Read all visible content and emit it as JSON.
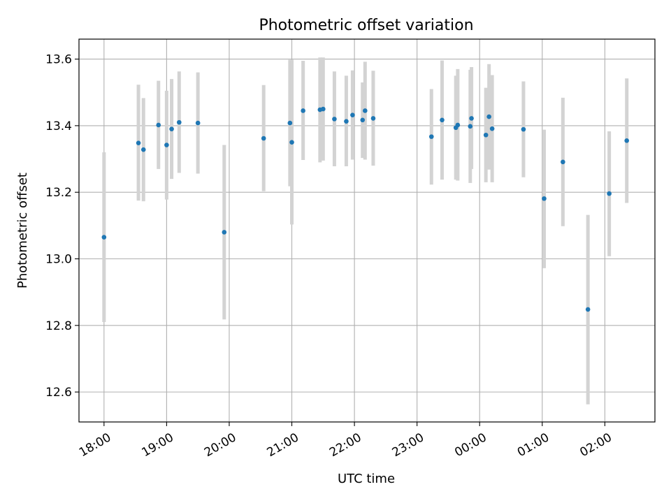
{
  "chart_data": {
    "type": "scatter",
    "title": "Photometric offset variation",
    "xlabel": "UTC time",
    "ylabel": "Photometric offset",
    "x_domain_hours": [
      17.6,
      26.8
    ],
    "ylim": [
      12.51,
      13.66
    ],
    "grid": true,
    "x_ticks": [
      {
        "label": "18:00",
        "hour": 18
      },
      {
        "label": "19:00",
        "hour": 19
      },
      {
        "label": "20:00",
        "hour": 20
      },
      {
        "label": "21:00",
        "hour": 21
      },
      {
        "label": "22:00",
        "hour": 22
      },
      {
        "label": "23:00",
        "hour": 23
      },
      {
        "label": "00:00",
        "hour": 24
      },
      {
        "label": "01:00",
        "hour": 25
      },
      {
        "label": "02:00",
        "hour": 26
      }
    ],
    "y_ticks": [
      "12.6",
      "12.8",
      "13.0",
      "13.2",
      "13.4",
      "13.6"
    ],
    "point_color": "#1f77b4",
    "errorbar_color": "#d3d3d3",
    "points": [
      {
        "x": 18.0,
        "y": 13.065,
        "low": 12.81,
        "high": 13.32
      },
      {
        "x": 18.55,
        "y": 13.348,
        "low": 13.175,
        "high": 13.523
      },
      {
        "x": 18.63,
        "y": 13.328,
        "low": 13.173,
        "high": 13.483
      },
      {
        "x": 18.87,
        "y": 13.402,
        "low": 13.27,
        "high": 13.535
      },
      {
        "x": 19.0,
        "y": 13.342,
        "low": 13.178,
        "high": 13.505
      },
      {
        "x": 19.08,
        "y": 13.39,
        "low": 13.24,
        "high": 13.54
      },
      {
        "x": 19.2,
        "y": 13.41,
        "low": 13.258,
        "high": 13.563
      },
      {
        "x": 19.5,
        "y": 13.408,
        "low": 13.256,
        "high": 13.56
      },
      {
        "x": 19.92,
        "y": 13.08,
        "low": 12.818,
        "high": 13.342
      },
      {
        "x": 20.55,
        "y": 13.362,
        "low": 13.203,
        "high": 13.522
      },
      {
        "x": 20.97,
        "y": 13.408,
        "low": 13.218,
        "high": 13.598
      },
      {
        "x": 21.0,
        "y": 13.35,
        "low": 13.103,
        "high": 13.598
      },
      {
        "x": 21.18,
        "y": 13.445,
        "low": 13.297,
        "high": 13.595
      },
      {
        "x": 21.45,
        "y": 13.448,
        "low": 13.29,
        "high": 13.605
      },
      {
        "x": 21.5,
        "y": 13.45,
        "low": 13.295,
        "high": 13.605
      },
      {
        "x": 21.68,
        "y": 13.42,
        "low": 13.278,
        "high": 13.563
      },
      {
        "x": 21.87,
        "y": 13.413,
        "low": 13.278,
        "high": 13.55
      },
      {
        "x": 21.97,
        "y": 13.432,
        "low": 13.298,
        "high": 13.566
      },
      {
        "x": 22.13,
        "y": 13.417,
        "low": 13.303,
        "high": 13.53
      },
      {
        "x": 22.17,
        "y": 13.445,
        "low": 13.298,
        "high": 13.592
      },
      {
        "x": 22.3,
        "y": 13.422,
        "low": 13.28,
        "high": 13.565
      },
      {
        "x": 23.23,
        "y": 13.367,
        "low": 13.223,
        "high": 13.51
      },
      {
        "x": 23.4,
        "y": 13.417,
        "low": 13.238,
        "high": 13.596
      },
      {
        "x": 23.62,
        "y": 13.394,
        "low": 13.238,
        "high": 13.55
      },
      {
        "x": 23.65,
        "y": 13.402,
        "low": 13.235,
        "high": 13.57
      },
      {
        "x": 23.85,
        "y": 13.398,
        "low": 13.228,
        "high": 13.568
      },
      {
        "x": 23.87,
        "y": 13.422,
        "low": 13.27,
        "high": 13.576
      },
      {
        "x": 24.1,
        "y": 13.372,
        "low": 13.23,
        "high": 13.514
      },
      {
        "x": 24.15,
        "y": 13.427,
        "low": 13.268,
        "high": 13.585
      },
      {
        "x": 24.2,
        "y": 13.391,
        "low": 13.23,
        "high": 13.552
      },
      {
        "x": 24.7,
        "y": 13.389,
        "low": 13.245,
        "high": 13.533
      },
      {
        "x": 25.03,
        "y": 13.181,
        "low": 12.972,
        "high": 13.388
      },
      {
        "x": 25.33,
        "y": 13.291,
        "low": 13.098,
        "high": 13.484
      },
      {
        "x": 25.73,
        "y": 12.848,
        "low": 12.563,
        "high": 13.132
      },
      {
        "x": 26.07,
        "y": 13.196,
        "low": 13.008,
        "high": 13.383
      },
      {
        "x": 26.35,
        "y": 13.355,
        "low": 13.168,
        "high": 13.542
      }
    ]
  }
}
